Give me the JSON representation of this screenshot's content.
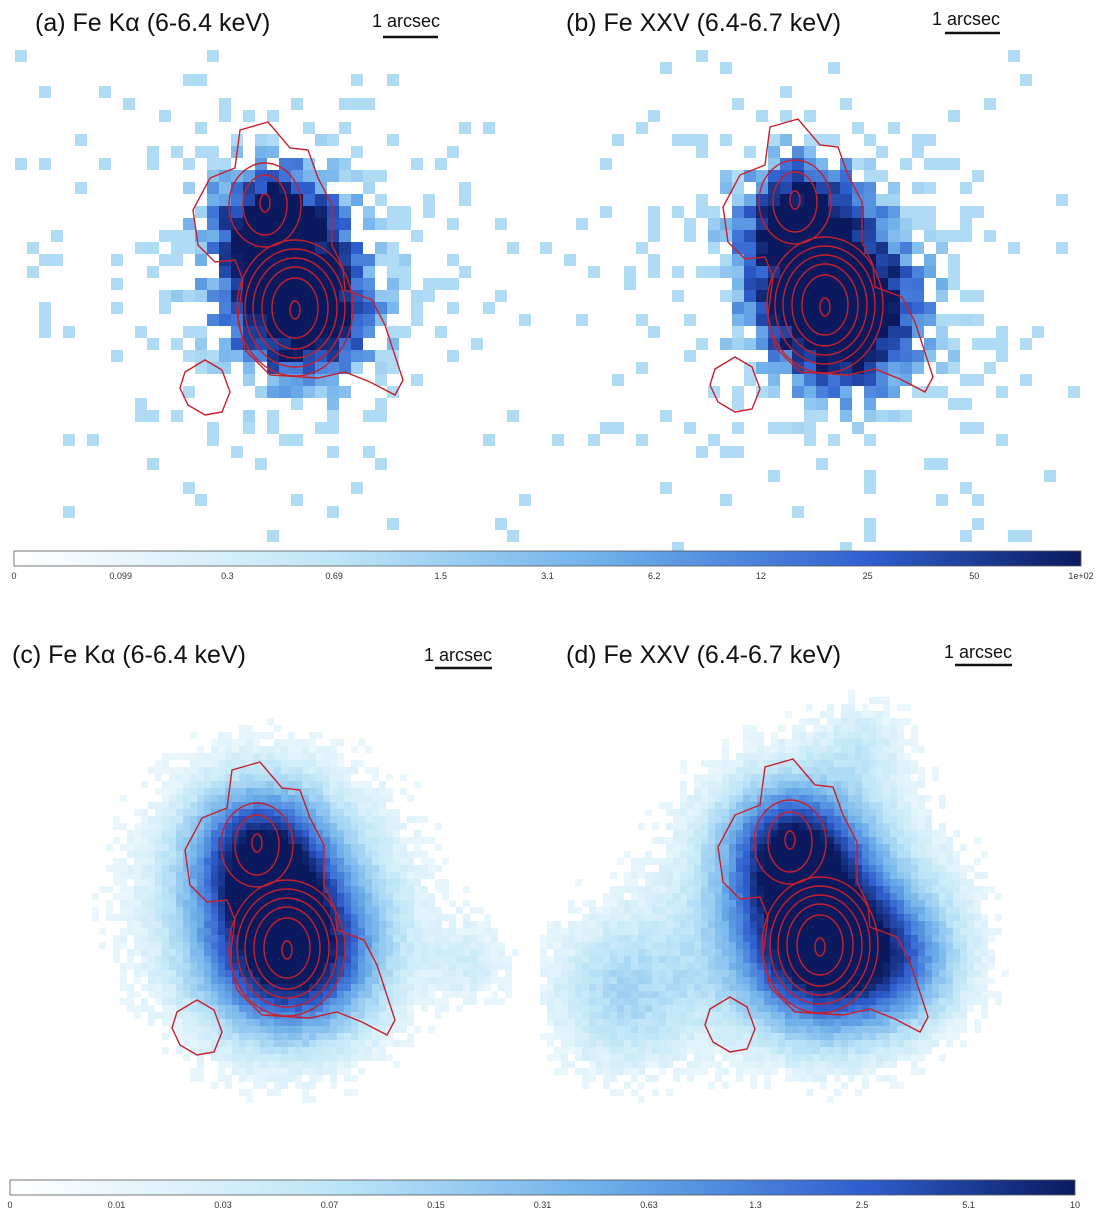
{
  "panels": [
    {
      "title": "(a) Fe Kα (6-6.4 keV)",
      "scale_label": "1 arcsec"
    },
    {
      "title": "(b) Fe XXV (6.4-6.7 keV)",
      "scale_label": "1 arcsec"
    },
    {
      "title": "(c) Fe Kα (6-6.4 keV)",
      "scale_label": "1 arcsec"
    },
    {
      "title": "(d) Fe XXV (6.4-6.7 keV)",
      "scale_label": "1 arcsec"
    }
  ],
  "colorbars": [
    {
      "ticks": [
        "0",
        "0.099",
        "0.3",
        "0.69",
        "1.5",
        "3.1",
        "6.2",
        "12",
        "25",
        "50",
        "1e+02"
      ]
    },
    {
      "ticks": [
        "0",
        "0.01",
        "0.03",
        "0.07",
        "0.15",
        "0.31",
        "0.63",
        "1.3",
        "2.5",
        "5.1",
        "10"
      ]
    }
  ]
}
